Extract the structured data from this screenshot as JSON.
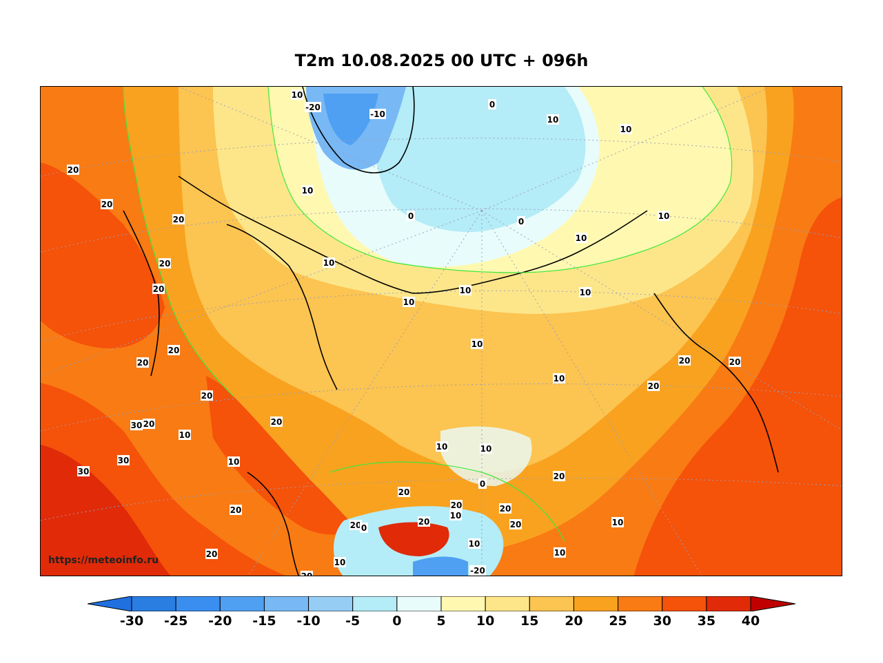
{
  "title": "T2m 10.08.2025 00 UTC + 096h",
  "watermark": "https://meteoinfo.ru",
  "colorbar": {
    "ticks": [
      "-30",
      "-25",
      "-20",
      "-15",
      "-10",
      "-5",
      "0",
      "5",
      "10",
      "15",
      "20",
      "25",
      "30",
      "35",
      "40"
    ],
    "colors": [
      "#2a7de1",
      "#3a8ef0",
      "#4fa0f2",
      "#78b8f5",
      "#96cdf5",
      "#b4ecf7",
      "#e8fcfc",
      "#fff8b0",
      "#fde68a",
      "#fcc450",
      "#f9a21f",
      "#f97b13",
      "#f5520a",
      "#e02a08"
    ],
    "extend_low": "#2070e0",
    "extend_high": "#c00000"
  },
  "map": {
    "contour_labels": [
      {
        "text": "10"
      },
      {
        "text": "-20"
      },
      {
        "text": "-10"
      },
      {
        "text": "0"
      },
      {
        "text": "10"
      },
      {
        "text": "10"
      },
      {
        "text": "20"
      },
      {
        "text": "20"
      },
      {
        "text": "20"
      },
      {
        "text": "10"
      },
      {
        "text": "0"
      },
      {
        "text": "0"
      },
      {
        "text": "10"
      },
      {
        "text": "10"
      },
      {
        "text": "10"
      },
      {
        "text": "20"
      },
      {
        "text": "10"
      },
      {
        "text": "10"
      },
      {
        "text": "20"
      },
      {
        "text": "10"
      },
      {
        "text": "10"
      },
      {
        "text": "20"
      },
      {
        "text": "20"
      },
      {
        "text": "20"
      },
      {
        "text": "20"
      },
      {
        "text": "10"
      },
      {
        "text": "20"
      },
      {
        "text": "20"
      },
      {
        "text": "30"
      },
      {
        "text": "20"
      },
      {
        "text": "10"
      },
      {
        "text": "20"
      },
      {
        "text": "10"
      },
      {
        "text": "10"
      },
      {
        "text": "30"
      },
      {
        "text": "30"
      },
      {
        "text": "10"
      },
      {
        "text": "20"
      },
      {
        "text": "0"
      },
      {
        "text": "20"
      },
      {
        "text": "20"
      },
      {
        "text": "20"
      },
      {
        "text": "20"
      },
      {
        "text": "10"
      },
      {
        "text": "20"
      },
      {
        "text": "20"
      },
      {
        "text": "0"
      },
      {
        "text": "10"
      },
      {
        "text": "20"
      },
      {
        "text": "10"
      },
      {
        "text": "-20"
      },
      {
        "text": "10"
      },
      {
        "text": "20"
      },
      {
        "text": "10"
      },
      {
        "text": "20"
      },
      {
        "text": "20"
      },
      {
        "text": "20"
      }
    ]
  }
}
